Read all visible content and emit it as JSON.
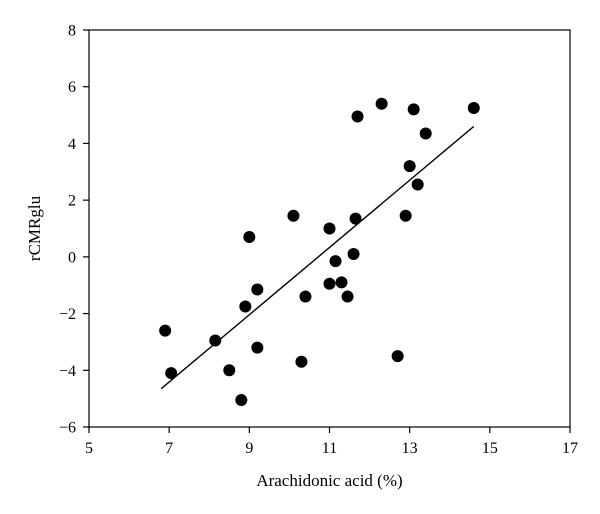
{
  "chart_data": {
    "type": "scatter",
    "title": "",
    "xlabel": "Arachidonic acid (%)",
    "ylabel": "rCMRglu",
    "xlim": [
      5,
      17
    ],
    "ylim": [
      -6,
      8
    ],
    "xticks": [
      5,
      7,
      9,
      11,
      13,
      15,
      17
    ],
    "yticks": [
      -6,
      -4,
      -2,
      0,
      2,
      4,
      6,
      8
    ],
    "xtick_labels": [
      "5",
      "7",
      "9",
      "11",
      "13",
      "15",
      "17"
    ],
    "ytick_labels": [
      "−6",
      "−4",
      "−2",
      "0",
      "2",
      "4",
      "6",
      "8"
    ],
    "grid": false,
    "legend": "none",
    "points": [
      {
        "x": 6.9,
        "y": -2.6
      },
      {
        "x": 7.05,
        "y": -4.1
      },
      {
        "x": 8.15,
        "y": -2.95
      },
      {
        "x": 8.5,
        "y": -4.0
      },
      {
        "x": 8.8,
        "y": -5.05
      },
      {
        "x": 8.9,
        "y": -1.75
      },
      {
        "x": 9.0,
        "y": 0.7
      },
      {
        "x": 9.2,
        "y": -3.2
      },
      {
        "x": 9.2,
        "y": -1.15
      },
      {
        "x": 10.1,
        "y": 1.45
      },
      {
        "x": 10.3,
        "y": -3.7
      },
      {
        "x": 10.4,
        "y": -1.4
      },
      {
        "x": 11.0,
        "y": 1.0
      },
      {
        "x": 11.0,
        "y": -0.95
      },
      {
        "x": 11.15,
        "y": -0.15
      },
      {
        "x": 11.3,
        "y": -0.9
      },
      {
        "x": 11.45,
        "y": -1.4
      },
      {
        "x": 11.6,
        "y": 0.1
      },
      {
        "x": 11.65,
        "y": 1.35
      },
      {
        "x": 11.7,
        "y": 4.95
      },
      {
        "x": 12.3,
        "y": 5.4
      },
      {
        "x": 12.7,
        "y": -3.5
      },
      {
        "x": 12.9,
        "y": 1.45
      },
      {
        "x": 13.0,
        "y": 3.2
      },
      {
        "x": 13.1,
        "y": 5.2
      },
      {
        "x": 13.2,
        "y": 2.55
      },
      {
        "x": 13.4,
        "y": 4.35
      },
      {
        "x": 14.6,
        "y": 5.25
      }
    ],
    "trendline": {
      "x": [
        6.8,
        14.6
      ],
      "y": [
        -4.65,
        4.6
      ]
    }
  }
}
